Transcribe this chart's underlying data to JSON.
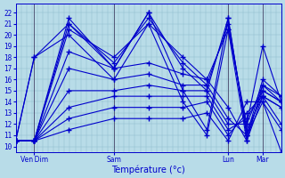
{
  "title": "Température (°c)",
  "ylabel_ticks": [
    10,
    11,
    12,
    13,
    14,
    15,
    16,
    17,
    18,
    19,
    20,
    21,
    22
  ],
  "ylim": [
    9.5,
    22.8
  ],
  "xlim": [
    0,
    1.0
  ],
  "bg_color": "#b8dce8",
  "grid_major_color": "#8fbfcf",
  "grid_minor_color": "#a8d0de",
  "line_color": "#0000cc",
  "marker": "+",
  "markersize": 4,
  "markeredgewidth": 1.0,
  "linewidth": 0.8,
  "day_ticks": [
    0.07,
    0.37,
    0.8,
    0.93
  ],
  "day_labels": [
    "Ven Dim",
    "Sam",
    "Lun",
    "Mar"
  ],
  "vline_positions": [
    0.07,
    0.37,
    0.8,
    0.93
  ],
  "time_nodes": [
    0.0,
    0.07,
    0.2,
    0.37,
    0.5,
    0.63,
    0.72,
    0.8,
    0.87,
    0.93,
    1.0
  ],
  "series": [
    [
      10.5,
      10.5,
      21.5,
      17.0,
      22.0,
      17.0,
      15.0,
      21.5,
      11.0,
      15.0,
      14.0
    ],
    [
      10.5,
      10.5,
      21.0,
      17.5,
      21.5,
      17.5,
      15.5,
      21.0,
      11.5,
      14.5,
      13.5
    ],
    [
      10.5,
      10.5,
      20.5,
      18.0,
      21.0,
      18.0,
      16.0,
      20.5,
      12.0,
      19.0,
      14.0
    ],
    [
      10.5,
      10.5,
      18.5,
      17.0,
      17.5,
      16.5,
      16.0,
      13.5,
      10.5,
      14.5,
      12.0
    ],
    [
      10.5,
      10.5,
      17.0,
      16.0,
      16.5,
      15.5,
      15.5,
      12.5,
      11.0,
      14.0,
      11.5
    ],
    [
      10.5,
      10.5,
      15.0,
      15.0,
      15.5,
      15.0,
      15.0,
      12.0,
      12.0,
      15.5,
      14.5
    ],
    [
      10.5,
      10.5,
      13.5,
      14.5,
      14.5,
      14.5,
      14.5,
      11.5,
      12.5,
      15.0,
      14.0
    ],
    [
      10.5,
      10.5,
      12.5,
      13.5,
      13.5,
      13.5,
      14.0,
      11.0,
      13.0,
      14.5,
      13.5
    ],
    [
      10.5,
      10.5,
      11.5,
      12.5,
      12.5,
      12.5,
      13.0,
      10.5,
      14.0,
      14.0,
      9.5
    ],
    [
      10.5,
      18.0,
      21.0,
      17.0,
      22.0,
      15.0,
      11.5,
      21.5,
      11.0,
      16.0,
      14.5
    ],
    [
      10.5,
      18.0,
      20.0,
      16.0,
      21.0,
      14.0,
      11.0,
      20.5,
      10.5,
      15.5,
      14.0
    ]
  ]
}
